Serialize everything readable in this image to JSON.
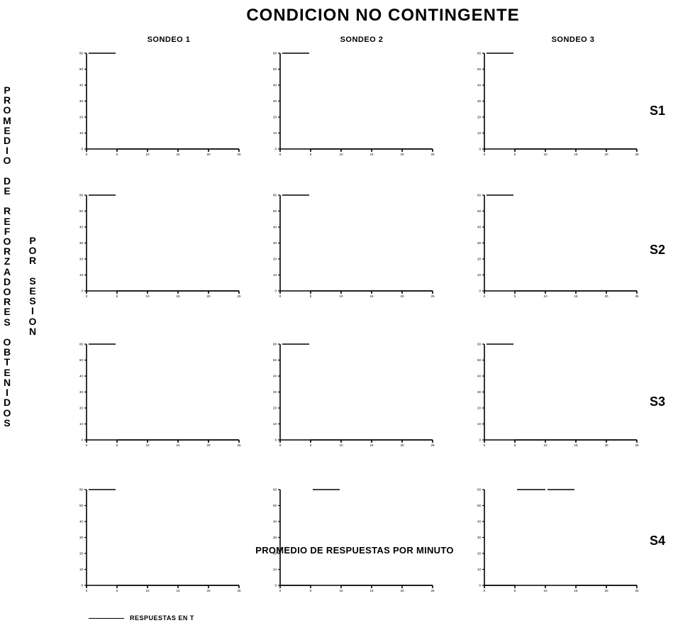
{
  "title": "CONDICION NO CONTINGENTE",
  "column_headers": [
    "SONDEO 1",
    "SONDEO 2",
    "SONDEO 3"
  ],
  "row_labels": [
    "S1",
    "S2",
    "S3",
    "S4"
  ],
  "ylabel_1": "PROMEDIO DE REFORZADORES OBTENIDOS",
  "ylabel_2": "POR SESION",
  "xlabel": "PROMEDIO DE RESPUESTAS POR MINUTO",
  "legend": {
    "label": "RESPUESTAS EN T"
  },
  "chart_data": {
    "type": "line",
    "layout": "small-multiples 4 rows x 3 columns",
    "x": [
      0,
      5,
      10,
      15,
      20,
      25
    ],
    "ylim": [
      0,
      60
    ],
    "yticks": [
      0,
      10,
      20,
      30,
      40,
      50,
      60
    ],
    "panels": [
      {
        "row": "S1",
        "col": "SONDEO 1",
        "series": [
          {
            "name": "RESPUESTAS EN T",
            "values": [
              60,
              0,
              0,
              0,
              0,
              0
            ]
          }
        ]
      },
      {
        "row": "S1",
        "col": "SONDEO 2",
        "series": [
          {
            "name": "RESPUESTAS EN T",
            "values": [
              60,
              0,
              0,
              0,
              0,
              0
            ]
          }
        ]
      },
      {
        "row": "S1",
        "col": "SONDEO 3",
        "series": [
          {
            "name": "RESPUESTAS EN T",
            "values": [
              60,
              0,
              0,
              0,
              0,
              0
            ]
          }
        ]
      },
      {
        "row": "S2",
        "col": "SONDEO 1",
        "series": [
          {
            "name": "RESPUESTAS EN T",
            "values": [
              60,
              0,
              0,
              0,
              0,
              0
            ]
          }
        ]
      },
      {
        "row": "S2",
        "col": "SONDEO 2",
        "series": [
          {
            "name": "RESPUESTAS EN T",
            "values": [
              60,
              0,
              0,
              0,
              0,
              0
            ]
          }
        ]
      },
      {
        "row": "S2",
        "col": "SONDEO 3",
        "series": [
          {
            "name": "RESPUESTAS EN T",
            "values": [
              60,
              0,
              0,
              0,
              0,
              0
            ]
          }
        ]
      },
      {
        "row": "S3",
        "col": "SONDEO 1",
        "series": [
          {
            "name": "RESPUESTAS EN T",
            "values": [
              60,
              0,
              0,
              0,
              0,
              0
            ]
          }
        ]
      },
      {
        "row": "S3",
        "col": "SONDEO 2",
        "series": [
          {
            "name": "RESPUESTAS EN T",
            "values": [
              60,
              0,
              0,
              0,
              0,
              0
            ]
          }
        ]
      },
      {
        "row": "S3",
        "col": "SONDEO 3",
        "series": [
          {
            "name": "RESPUESTAS EN T",
            "values": [
              60,
              0,
              0,
              0,
              0,
              0
            ]
          }
        ]
      },
      {
        "row": "S4",
        "col": "SONDEO 1",
        "series": [
          {
            "name": "RESPUESTAS EN T",
            "values": [
              60,
              0,
              0,
              0,
              0,
              0
            ]
          }
        ]
      },
      {
        "row": "S4",
        "col": "SONDEO 2",
        "series": [
          {
            "name": "RESPUESTAS EN T",
            "values": [
              0,
              60,
              0,
              0,
              0,
              0
            ]
          }
        ]
      },
      {
        "row": "S4",
        "col": "SONDEO 3",
        "series": [
          {
            "name": "RESPUESTAS EN T",
            "values": [
              0,
              60,
              60,
              0,
              0,
              0
            ]
          }
        ]
      }
    ]
  }
}
